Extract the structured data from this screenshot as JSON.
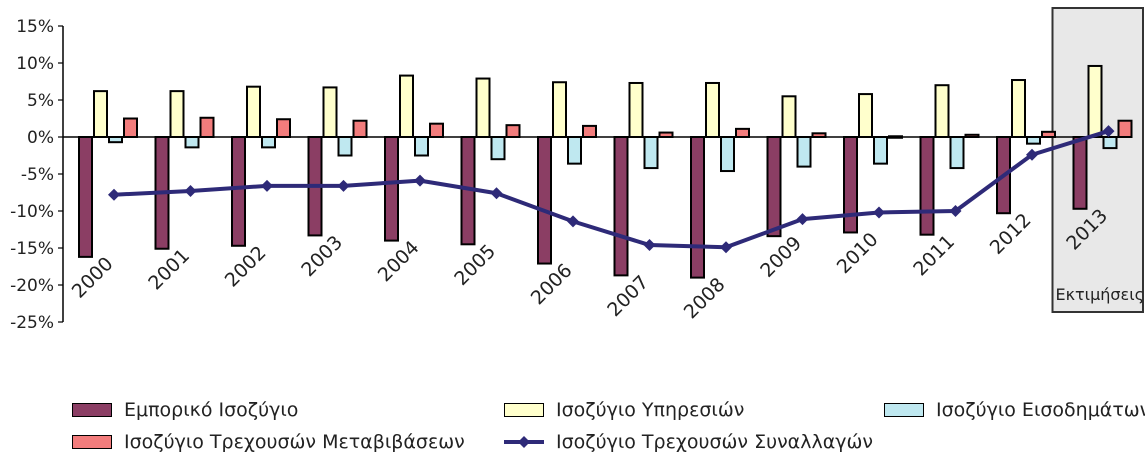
{
  "chart_data": {
    "type": "bar",
    "categories": [
      "2000",
      "2001",
      "2002",
      "2003",
      "2004",
      "2005",
      "2006",
      "2007",
      "2008",
      "2009",
      "2010",
      "2011",
      "2012",
      "2013"
    ],
    "ylim": [
      -25,
      15
    ],
    "yticks": [
      "15%",
      "10%",
      "5%",
      "0%",
      "-5%",
      "-10%",
      "-15%",
      "-20%",
      "-25%"
    ],
    "ytick_values": [
      15,
      10,
      5,
      0,
      -5,
      -10,
      -15,
      -20,
      -25
    ],
    "series": [
      {
        "name": "Εμπορικό Ισοζύγιο",
        "kind": "bar",
        "color": "#8B3E64",
        "values": [
          -16.2,
          -15.1,
          -14.7,
          -13.3,
          -14,
          -14.5,
          -17.1,
          -18.7,
          -19,
          -13.4,
          -12.9,
          -13.2,
          -10.3,
          -9.7
        ]
      },
      {
        "name": "Ισοζύγιο Υπηρεσιών",
        "kind": "bar",
        "color": "#FFFFCC",
        "values": [
          6.2,
          6.2,
          6.8,
          6.7,
          8.3,
          7.9,
          7.4,
          7.3,
          7.3,
          5.5,
          5.8,
          7,
          7.7,
          9.6
        ]
      },
      {
        "name": "Ισοζύγιο Εισοδημάτων",
        "kind": "bar",
        "color": "#BFE8F0",
        "values": [
          -0.7,
          -1.4,
          -1.4,
          -2.5,
          -2.5,
          -3,
          -3.6,
          -4.2,
          -4.6,
          -4,
          -3.6,
          -4.2,
          -0.9,
          -1.5
        ]
      },
      {
        "name": "Ισοζύγιο Τρεχουσών Μεταβιβάσεων",
        "kind": "bar",
        "color": "#F27C7C",
        "values": [
          2.5,
          2.6,
          2.4,
          2.2,
          1.8,
          1.6,
          1.5,
          0.6,
          1.1,
          0.5,
          0.1,
          0.3,
          0.7,
          2.2
        ]
      },
      {
        "name": "Ισοζύγιο Τρεχουσών Συναλλαγών",
        "kind": "line",
        "color": "#2E2A78",
        "values": [
          -7.8,
          -7.3,
          -6.6,
          -6.6,
          -5.9,
          -7.6,
          -11.4,
          -14.6,
          -14.9,
          -11.1,
          -10.2,
          -10,
          -2.4,
          0.8
        ]
      }
    ],
    "annotation": "Εκτιμήσεις",
    "grid": false
  },
  "legend": {
    "items": [
      {
        "label": "Εμπορικό Ισοζύγιο",
        "color": "#8B3E64",
        "kind": "bar"
      },
      {
        "label": "Ισοζύγιο Υπηρεσιών",
        "color": "#FFFFCC",
        "kind": "bar"
      },
      {
        "label": "Ισοζύγιο Εισοδημάτων",
        "color": "#BFE8F0",
        "kind": "bar"
      },
      {
        "label": "Ισοζύγιο Τρεχουσών Μεταβιβάσεων",
        "color": "#F27C7C",
        "kind": "bar"
      },
      {
        "label": "Ισοζύγιο Τρεχουσών Συναλλαγών",
        "color": "#2E2A78",
        "kind": "line"
      }
    ]
  }
}
